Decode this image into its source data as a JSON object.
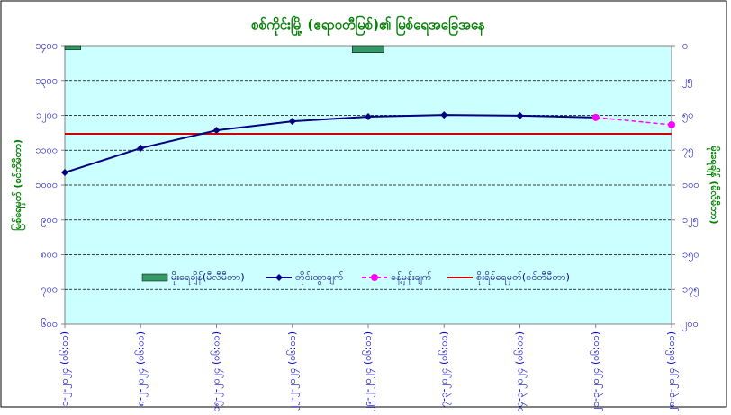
{
  "chart_data": {
    "type": "line",
    "title": "စစ်ကိုင်းမြို့ (ဧရာဝတီမြစ်)၏ မြစ်ရေအခြေအနေ",
    "y_label": "မြစ်ရေမှတ် (စင်တီမီတာ)",
    "y2_label": "မိုးရေချိန် (မီလီမီတာ)",
    "categories": [
      "၁-၂-၂၀၂၄ (၀၆:၀၀)",
      "၈-၂-၂၀၂၄ (၀၆:၀၀)",
      "၁၅-၂-၂၀၂၄ (၀၆:၀၀)",
      "၂၂-၂-၂၀၂၄ (၀၆:၀၀)",
      "၂၉-၂-၂၀၂၄ (၀၆:၀၀)",
      "၇-၃-၂၀၂၄ (၀၆:၀၀)",
      "၁၄-၃-၂၀၂၄ (၀၆:၀၀)",
      "၂၁-၃-၂၀၂၄ (၀၆:၀၀)",
      "၂၈-၃-၂၀၂၄ (၀၆:၀၀)"
    ],
    "series": [
      {
        "name": "မိုးရေချိန်(မီလီမီတာ)",
        "kind": "bar",
        "axis": "y2",
        "color": "#339966",
        "values": [
          3,
          null,
          null,
          null,
          5,
          null,
          null,
          null,
          null
        ]
      },
      {
        "name": "တိုင်းထွာချက်",
        "kind": "line",
        "color": "#000080",
        "values": [
          1036,
          1106,
          1157,
          1183,
          1196,
          1201,
          1199,
          1194,
          null
        ]
      },
      {
        "name": "ခန့်မှန်းချက်",
        "kind": "dashed",
        "color": "#ff00ff",
        "values": [
          null,
          null,
          null,
          null,
          null,
          null,
          null,
          1194,
          1173
        ]
      }
    ],
    "reference_line": {
      "name": "စိုးရိမ်ရေမှတ်(စင်တီမီတာ)",
      "value": 1147,
      "color": "#cc0000"
    },
    "ylim": [
      600,
      1400
    ],
    "yticks": [
      {
        "value": 600,
        "label": "၆၀၀"
      },
      {
        "value": 700,
        "label": "၇၀၀"
      },
      {
        "value": 800,
        "label": "၈၀၀"
      },
      {
        "value": 900,
        "label": "၉၀၀"
      },
      {
        "value": 1000,
        "label": "၁၀၀၀"
      },
      {
        "value": 1100,
        "label": "၁၁၀၀"
      },
      {
        "value": 1200,
        "label": "၁၂၀၀"
      },
      {
        "value": 1300,
        "label": "၁၃၀၀"
      },
      {
        "value": 1400,
        "label": "၁၄၀၀"
      }
    ],
    "y2lim": [
      0,
      200
    ],
    "y2_inverted": true,
    "y2ticks": [
      {
        "value": 0,
        "label": "၀"
      },
      {
        "value": 25,
        "label": "၂၅"
      },
      {
        "value": 50,
        "label": "၅၀"
      },
      {
        "value": 75,
        "label": "၇၅"
      },
      {
        "value": 100,
        "label": "၁၀၀"
      },
      {
        "value": 125,
        "label": "၁၂၅"
      },
      {
        "value": 150,
        "label": "၁၅၀"
      },
      {
        "value": 175,
        "label": "၁၇၅"
      },
      {
        "value": 200,
        "label": "၂၀၀"
      }
    ],
    "grid": true
  }
}
